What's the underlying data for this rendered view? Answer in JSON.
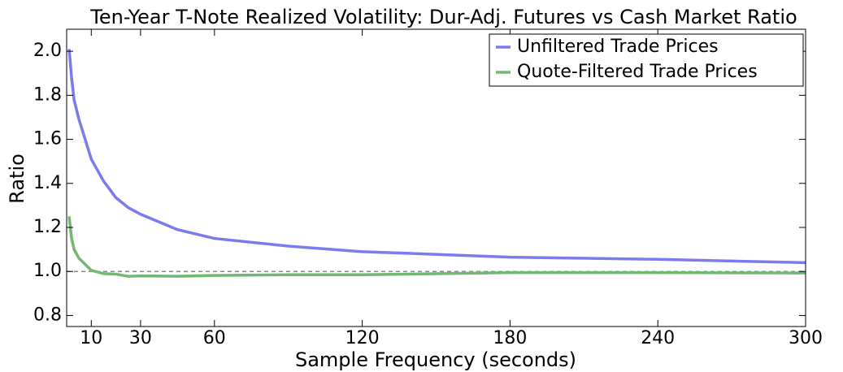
{
  "chart_data": {
    "type": "line",
    "title": "Ten-Year T-Note Realized Volatility: Dur-Adj. Futures vs Cash Market Ratio",
    "x_label": "Sample Frequency (seconds)",
    "y_label": "Ratio",
    "x": [
      1,
      2,
      3,
      5,
      10,
      15,
      20,
      25,
      30,
      45,
      60,
      90,
      120,
      180,
      240,
      300
    ],
    "series": [
      {
        "name": "Unfiltered Trade Prices",
        "color": "#7b7bef",
        "values": [
          2.01,
          1.88,
          1.78,
          1.69,
          1.51,
          1.41,
          1.335,
          1.29,
          1.26,
          1.19,
          1.15,
          1.115,
          1.09,
          1.065,
          1.055,
          1.04
        ]
      },
      {
        "name": "Quote-Filtered Trade Prices",
        "color": "#72b872",
        "values": [
          1.25,
          1.15,
          1.1,
          1.06,
          1.005,
          0.99,
          0.988,
          0.978,
          0.98,
          0.978,
          0.982,
          0.985,
          0.985,
          0.995,
          0.995,
          0.993
        ]
      }
    ],
    "reference_line": 1.0,
    "xlim": [
      0,
      300
    ],
    "xticks": [
      10,
      30,
      60,
      120,
      180,
      240,
      300
    ],
    "ylim": [
      0.75,
      2.1
    ],
    "yticks": [
      {
        "value": 0.8,
        "label": "0.8"
      },
      {
        "value": 1.0,
        "label": "1.0"
      },
      {
        "value": 1.2,
        "label": "1.2"
      },
      {
        "value": 1.4,
        "label": "1.4"
      },
      {
        "value": 1.6,
        "label": "1.6"
      },
      {
        "value": 1.8,
        "label": "1.8"
      },
      {
        "value": 2.0,
        "label": "2.0"
      }
    ],
    "legend": "upper right",
    "grid": false
  }
}
